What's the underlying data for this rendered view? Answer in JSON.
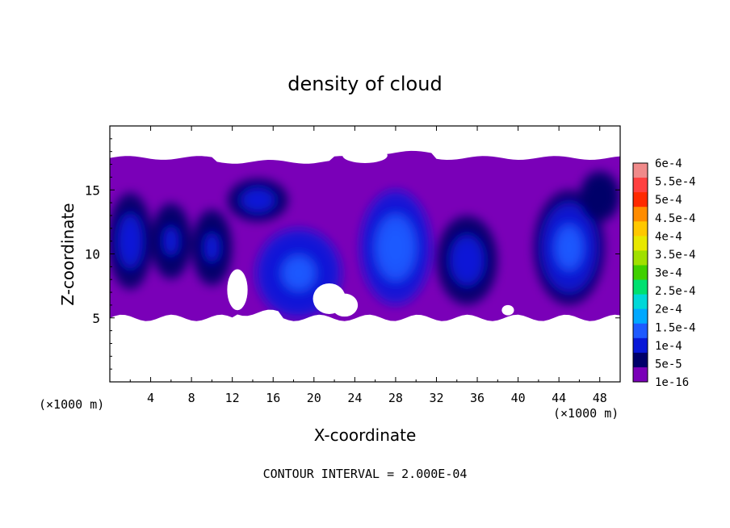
{
  "chart_data": {
    "type": "heatmap",
    "title": "density of cloud",
    "xlabel": "X-coordinate",
    "ylabel": "Z-coordinate",
    "x_unit_left": "(×1000 m)",
    "x_unit_right": "(×1000 m)",
    "xlim": [
      0,
      50
    ],
    "ylim": [
      0,
      20
    ],
    "x_ticks": [
      4,
      8,
      12,
      16,
      20,
      24,
      28,
      32,
      36,
      40,
      44,
      48
    ],
    "y_ticks": [
      5,
      10,
      15
    ],
    "footer": "CONTOUR INTERVAL = 2.000E-04",
    "colorbar": {
      "labels": [
        "6e-4",
        "5.5e-4",
        "5e-4",
        "4.5e-4",
        "4e-4",
        "3.5e-4",
        "3e-4",
        "2.5e-4",
        "2e-4",
        "1.5e-4",
        "1e-4",
        "5e-5",
        "1e-16"
      ],
      "colors": [
        "#f08a8a",
        "#ff4040",
        "#ff2a00",
        "#ff8c00",
        "#ffc800",
        "#e8e800",
        "#a0e000",
        "#40d000",
        "#00e070",
        "#00d8d8",
        "#00a8ff",
        "#1e5aff",
        "#0818d8",
        "#00006a",
        "#7a00b8"
      ]
    },
    "cloud_layer": {
      "base_z": 5,
      "top_z": 17.5
    },
    "cells": [
      {
        "x": 2,
        "z": 11,
        "rx": 2.2,
        "rz": 3.8,
        "level": 0.8
      },
      {
        "x": 6,
        "z": 11,
        "rx": 2.0,
        "rz": 3.0,
        "level": 0.7
      },
      {
        "x": 10,
        "z": 10.5,
        "rx": 2.0,
        "rz": 3.0,
        "level": 0.65
      },
      {
        "x": 14.5,
        "z": 14.2,
        "rx": 3.0,
        "rz": 1.7,
        "level": 0.75
      },
      {
        "x": 18.5,
        "z": 8.5,
        "rx": 4.2,
        "rz": 3.5,
        "level": 1.45
      },
      {
        "x": 28,
        "z": 10.5,
        "rx": 3.5,
        "rz": 4.5,
        "level": 1.5
      },
      {
        "x": 35,
        "z": 9.5,
        "rx": 3.0,
        "rz": 3.5,
        "level": 0.9
      },
      {
        "x": 45,
        "z": 10.5,
        "rx": 3.5,
        "rz": 4.5,
        "level": 1.4
      },
      {
        "x": 48,
        "z": 14.5,
        "rx": 2.0,
        "rz": 2.0,
        "level": 0.4
      }
    ]
  }
}
